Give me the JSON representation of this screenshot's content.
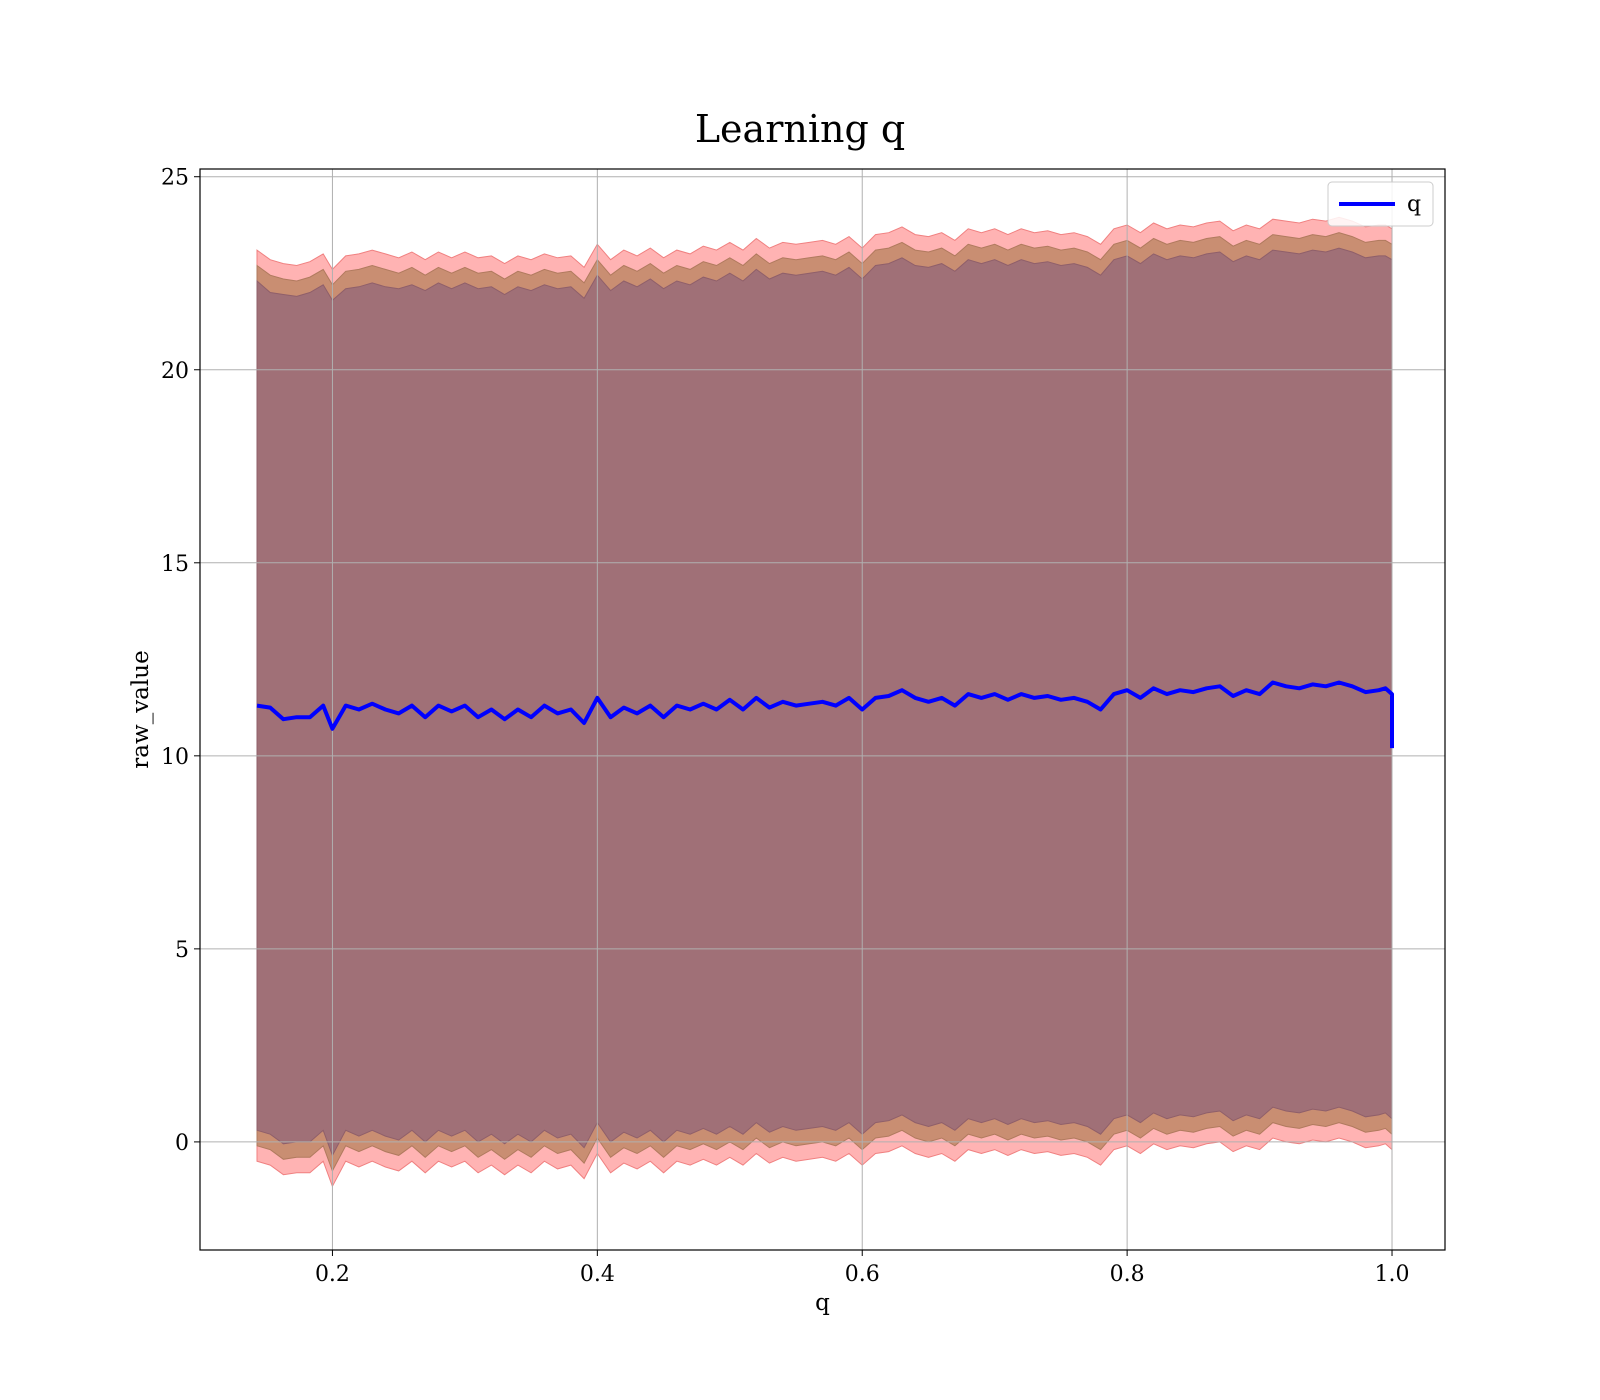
{
  "chart_data": {
    "type": "line",
    "title": "Learning q",
    "xlabel": "q",
    "ylabel": "raw_value",
    "xlim": [
      0.1,
      1.04
    ],
    "ylim": [
      -2.8,
      25.2
    ],
    "x_ticks": [
      0.2,
      0.4,
      0.6,
      0.8,
      1.0
    ],
    "x_tick_labels": [
      "0.2",
      "0.4",
      "0.6",
      "0.8",
      "1.0"
    ],
    "y_ticks": [
      0,
      5,
      10,
      15,
      20,
      25
    ],
    "y_tick_labels": [
      "0",
      "5",
      "10",
      "15",
      "20",
      "25"
    ],
    "grid": true,
    "legend": {
      "position": "top-right",
      "entries": [
        "q"
      ]
    },
    "colors": {
      "line": "#0000ff",
      "outer_band": "#ff9999",
      "middle_band": "#c38a6a",
      "inner_band": "#a07077",
      "grid": "#b0b0b0"
    },
    "series": [
      {
        "name": "q",
        "x": [
          0.143,
          0.153,
          0.163,
          0.173,
          0.183,
          0.193,
          0.2,
          0.21,
          0.22,
          0.23,
          0.24,
          0.25,
          0.26,
          0.27,
          0.28,
          0.29,
          0.3,
          0.31,
          0.32,
          0.33,
          0.34,
          0.35,
          0.36,
          0.37,
          0.38,
          0.39,
          0.4,
          0.41,
          0.42,
          0.43,
          0.44,
          0.45,
          0.46,
          0.47,
          0.48,
          0.49,
          0.5,
          0.51,
          0.52,
          0.53,
          0.54,
          0.55,
          0.56,
          0.57,
          0.58,
          0.59,
          0.6,
          0.61,
          0.62,
          0.63,
          0.64,
          0.65,
          0.66,
          0.67,
          0.68,
          0.69,
          0.7,
          0.71,
          0.72,
          0.73,
          0.74,
          0.75,
          0.76,
          0.77,
          0.78,
          0.79,
          0.8,
          0.81,
          0.82,
          0.83,
          0.84,
          0.85,
          0.86,
          0.87,
          0.88,
          0.89,
          0.9,
          0.91,
          0.92,
          0.93,
          0.94,
          0.95,
          0.96,
          0.97,
          0.98,
          0.99,
          0.995,
          1.0,
          1.0
        ],
        "values": [
          11.3,
          11.25,
          10.95,
          11.0,
          11.0,
          11.3,
          10.7,
          11.3,
          11.2,
          11.35,
          11.2,
          11.1,
          11.3,
          11.0,
          11.3,
          11.15,
          11.3,
          11.0,
          11.2,
          10.95,
          11.2,
          11.0,
          11.3,
          11.1,
          11.2,
          10.85,
          11.5,
          11.0,
          11.25,
          11.1,
          11.3,
          11.0,
          11.3,
          11.2,
          11.35,
          11.2,
          11.45,
          11.2,
          11.5,
          11.25,
          11.4,
          11.3,
          11.35,
          11.4,
          11.3,
          11.5,
          11.2,
          11.5,
          11.55,
          11.7,
          11.5,
          11.4,
          11.5,
          11.3,
          11.6,
          11.5,
          11.6,
          11.45,
          11.6,
          11.5,
          11.55,
          11.45,
          11.5,
          11.4,
          11.2,
          11.6,
          11.7,
          11.5,
          11.75,
          11.6,
          11.7,
          11.65,
          11.75,
          11.8,
          11.55,
          11.7,
          11.6,
          11.9,
          11.8,
          11.75,
          11.85,
          11.8,
          11.9,
          11.8,
          11.65,
          11.7,
          11.75,
          11.6,
          10.2
        ],
        "band_inner": {
          "upper": [
            22.3,
            22.0,
            21.95,
            21.9,
            22.0,
            22.2,
            21.8,
            22.1,
            22.15,
            22.25,
            22.15,
            22.1,
            22.2,
            22.05,
            22.25,
            22.1,
            22.25,
            22.1,
            22.15,
            21.95,
            22.15,
            22.05,
            22.2,
            22.1,
            22.15,
            21.85,
            22.45,
            22.05,
            22.3,
            22.15,
            22.35,
            22.1,
            22.3,
            22.2,
            22.4,
            22.3,
            22.5,
            22.3,
            22.6,
            22.35,
            22.5,
            22.45,
            22.5,
            22.55,
            22.45,
            22.65,
            22.35,
            22.7,
            22.75,
            22.9,
            22.7,
            22.65,
            22.75,
            22.55,
            22.85,
            22.75,
            22.85,
            22.7,
            22.85,
            22.75,
            22.8,
            22.7,
            22.75,
            22.65,
            22.45,
            22.85,
            22.95,
            22.75,
            23.0,
            22.85,
            22.95,
            22.9,
            23.0,
            23.05,
            22.8,
            22.95,
            22.85,
            23.1,
            23.05,
            23.0,
            23.1,
            23.05,
            23.15,
            23.05,
            22.9,
            22.95,
            22.95,
            22.85,
            22.35
          ],
          "lower": [
            0.3,
            0.2,
            -0.05,
            0.0,
            0.0,
            0.3,
            -0.35,
            0.3,
            0.15,
            0.3,
            0.15,
            0.05,
            0.3,
            0.0,
            0.3,
            0.15,
            0.3,
            0.0,
            0.2,
            -0.05,
            0.2,
            0.0,
            0.3,
            0.1,
            0.2,
            -0.15,
            0.5,
            0.0,
            0.25,
            0.1,
            0.3,
            0.0,
            0.3,
            0.2,
            0.35,
            0.2,
            0.4,
            0.2,
            0.5,
            0.25,
            0.4,
            0.3,
            0.35,
            0.4,
            0.3,
            0.5,
            0.2,
            0.5,
            0.55,
            0.7,
            0.5,
            0.4,
            0.5,
            0.3,
            0.6,
            0.5,
            0.6,
            0.45,
            0.6,
            0.5,
            0.55,
            0.45,
            0.5,
            0.4,
            0.2,
            0.6,
            0.7,
            0.5,
            0.75,
            0.6,
            0.7,
            0.65,
            0.75,
            0.8,
            0.55,
            0.7,
            0.6,
            0.9,
            0.8,
            0.75,
            0.85,
            0.8,
            0.9,
            0.8,
            0.65,
            0.7,
            0.75,
            0.6,
            -0.5
          ]
        },
        "band_middle": {
          "upper": [
            22.7,
            22.45,
            22.35,
            22.3,
            22.4,
            22.6,
            22.2,
            22.55,
            22.6,
            22.7,
            22.6,
            22.5,
            22.65,
            22.45,
            22.65,
            22.5,
            22.65,
            22.5,
            22.55,
            22.35,
            22.55,
            22.45,
            22.6,
            22.5,
            22.55,
            22.25,
            22.85,
            22.45,
            22.7,
            22.55,
            22.75,
            22.5,
            22.7,
            22.6,
            22.8,
            22.7,
            22.9,
            22.7,
            23.0,
            22.75,
            22.9,
            22.85,
            22.9,
            22.95,
            22.85,
            23.05,
            22.75,
            23.1,
            23.15,
            23.3,
            23.1,
            23.05,
            23.15,
            22.95,
            23.25,
            23.15,
            23.25,
            23.1,
            23.25,
            23.15,
            23.2,
            23.1,
            23.15,
            23.05,
            22.85,
            23.25,
            23.35,
            23.15,
            23.4,
            23.25,
            23.35,
            23.3,
            23.4,
            23.45,
            23.2,
            23.35,
            23.25,
            23.5,
            23.45,
            23.4,
            23.5,
            23.45,
            23.55,
            23.45,
            23.3,
            23.35,
            23.35,
            23.25,
            22.75
          ],
          "lower": [
            -0.1,
            -0.2,
            -0.45,
            -0.4,
            -0.4,
            -0.1,
            -0.75,
            -0.1,
            -0.25,
            -0.1,
            -0.25,
            -0.35,
            -0.1,
            -0.4,
            -0.1,
            -0.25,
            -0.1,
            -0.4,
            -0.2,
            -0.45,
            -0.2,
            -0.4,
            -0.1,
            -0.3,
            -0.2,
            -0.55,
            0.1,
            -0.4,
            -0.15,
            -0.3,
            -0.1,
            -0.4,
            -0.1,
            -0.2,
            -0.05,
            -0.2,
            0.0,
            -0.2,
            0.1,
            -0.15,
            0.0,
            -0.1,
            -0.05,
            0.0,
            -0.1,
            0.1,
            -0.2,
            0.1,
            0.15,
            0.3,
            0.1,
            0.0,
            0.1,
            -0.1,
            0.2,
            0.1,
            0.2,
            0.05,
            0.2,
            0.1,
            0.15,
            0.05,
            0.1,
            0.0,
            -0.2,
            0.2,
            0.3,
            0.1,
            0.35,
            0.2,
            0.3,
            0.25,
            0.35,
            0.4,
            0.15,
            0.3,
            0.2,
            0.5,
            0.4,
            0.35,
            0.45,
            0.4,
            0.5,
            0.4,
            0.25,
            0.3,
            0.35,
            0.2,
            -0.9
          ]
        },
        "band_outer": {
          "upper": [
            23.1,
            22.85,
            22.75,
            22.7,
            22.8,
            23.0,
            22.6,
            22.95,
            23.0,
            23.1,
            23.0,
            22.9,
            23.05,
            22.85,
            23.05,
            22.9,
            23.05,
            22.9,
            22.95,
            22.75,
            22.95,
            22.85,
            23.0,
            22.9,
            22.95,
            22.65,
            23.25,
            22.85,
            23.1,
            22.95,
            23.15,
            22.9,
            23.1,
            23.0,
            23.2,
            23.1,
            23.3,
            23.1,
            23.4,
            23.15,
            23.3,
            23.25,
            23.3,
            23.35,
            23.25,
            23.45,
            23.15,
            23.5,
            23.55,
            23.7,
            23.5,
            23.45,
            23.55,
            23.35,
            23.65,
            23.55,
            23.65,
            23.5,
            23.65,
            23.55,
            23.6,
            23.5,
            23.55,
            23.45,
            23.25,
            23.65,
            23.75,
            23.55,
            23.8,
            23.65,
            23.75,
            23.7,
            23.8,
            23.85,
            23.6,
            23.75,
            23.65,
            23.9,
            23.85,
            23.8,
            23.9,
            23.85,
            23.95,
            23.85,
            23.7,
            23.75,
            23.75,
            23.65,
            23.15
          ],
          "lower": [
            -0.5,
            -0.6,
            -0.85,
            -0.8,
            -0.8,
            -0.5,
            -1.15,
            -0.5,
            -0.65,
            -0.5,
            -0.65,
            -0.75,
            -0.5,
            -0.8,
            -0.5,
            -0.65,
            -0.5,
            -0.8,
            -0.6,
            -0.85,
            -0.6,
            -0.8,
            -0.5,
            -0.7,
            -0.6,
            -0.95,
            -0.3,
            -0.8,
            -0.55,
            -0.7,
            -0.5,
            -0.8,
            -0.5,
            -0.6,
            -0.45,
            -0.6,
            -0.4,
            -0.6,
            -0.3,
            -0.55,
            -0.4,
            -0.5,
            -0.45,
            -0.4,
            -0.5,
            -0.3,
            -0.6,
            -0.3,
            -0.25,
            -0.1,
            -0.3,
            -0.4,
            -0.3,
            -0.5,
            -0.2,
            -0.3,
            -0.2,
            -0.35,
            -0.2,
            -0.3,
            -0.25,
            -0.35,
            -0.3,
            -0.4,
            -0.6,
            -0.2,
            -0.1,
            -0.3,
            -0.05,
            -0.2,
            -0.1,
            -0.15,
            -0.05,
            0.0,
            -0.25,
            -0.1,
            -0.2,
            0.1,
            0.0,
            -0.05,
            0.05,
            0.0,
            0.1,
            0.0,
            -0.15,
            -0.1,
            -0.05,
            -0.2,
            -1.6
          ]
        }
      }
    ]
  }
}
